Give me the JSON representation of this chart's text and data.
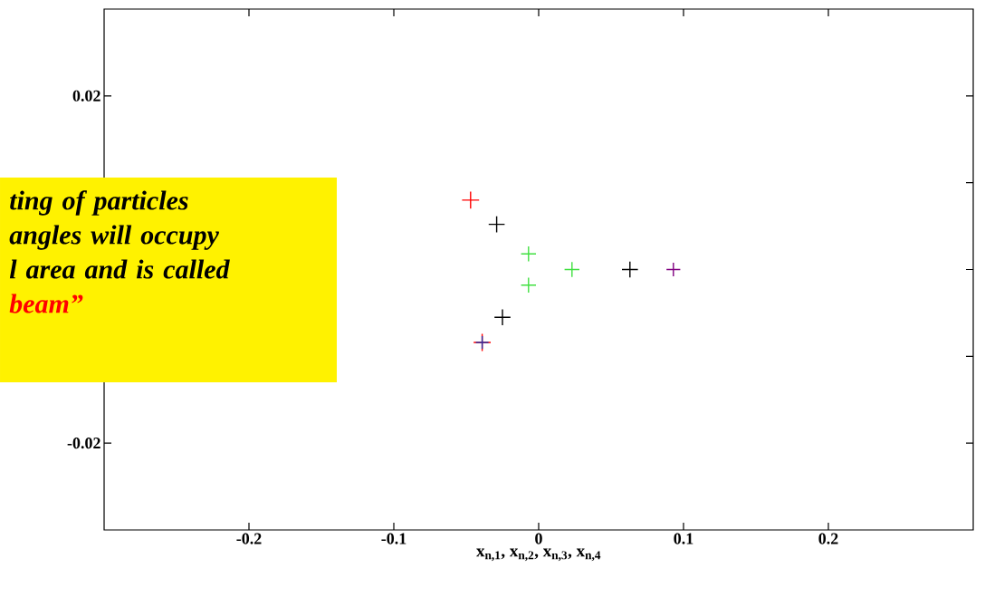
{
  "chart_data": {
    "type": "scatter",
    "xlabel": "x$_{n,1}$, x$_{n,2}$, x$_{n,3}$, x$_{n,4}$",
    "xlim": [
      -0.3,
      0.3
    ],
    "ylim": [
      -0.03,
      0.03
    ],
    "xticks": [
      -0.2,
      -0.1,
      0,
      0.1,
      0.2
    ],
    "yticks": [
      0.02,
      {
        "value": 0.01,
        "label": null
      },
      {
        "value": 0,
        "label": null
      },
      {
        "value": -0.01,
        "label": null
      },
      -0.02
    ],
    "marker": "cross",
    "series": [
      {
        "color": "#ff0000",
        "x": [
          -0.047,
          -0.039
        ],
        "values": [
          0.008,
          -0.0084
        ]
      },
      {
        "color": "#000000",
        "x": [
          -0.029,
          0.063,
          -0.025
        ],
        "values": [
          0.0052,
          0,
          -0.0055
        ]
      },
      {
        "color": "#40e040",
        "x": [
          -0.007,
          0.023,
          -0.007
        ],
        "values": [
          0.0018,
          0,
          -0.0018
        ]
      },
      {
        "color": "#800080",
        "x": [
          0.093
        ],
        "values": [
          0
        ]
      },
      {
        "color": "#3030a0",
        "x": [
          -0.039
        ],
        "values": [
          -0.0084
        ]
      }
    ],
    "annotations": [
      "ting of particles",
      " angles will occupy",
      "l area and is called",
      "beam”"
    ]
  }
}
